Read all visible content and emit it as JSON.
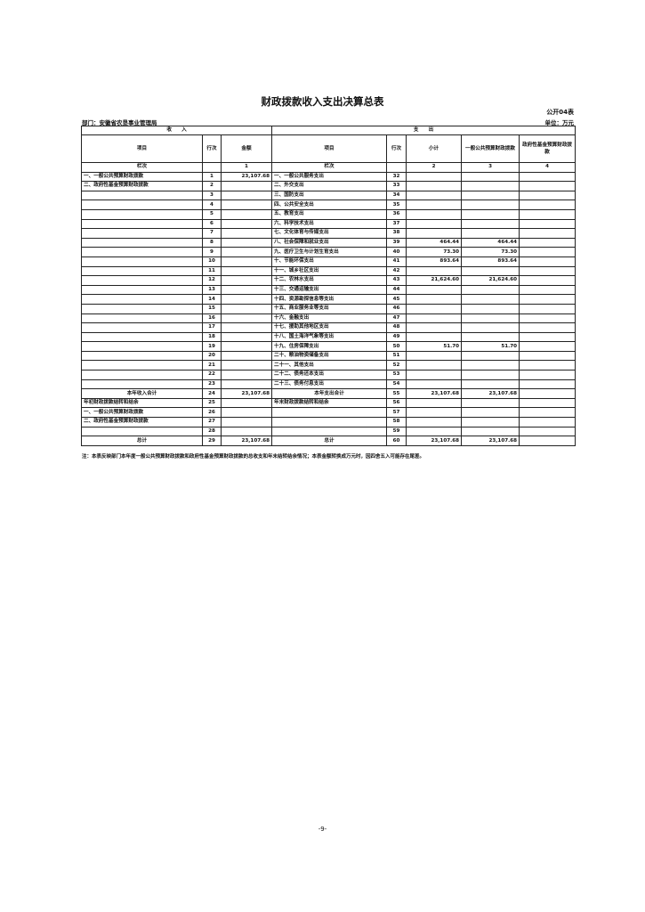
{
  "title": "财政拨款收入支出决算总表",
  "form_no": "公开04表",
  "department": "部门：安徽省农垦事业管理局",
  "unit": "单位：万元",
  "sections": {
    "income": "收　　入",
    "expense": "支　　出"
  },
  "headers": [
    "项目",
    "行次",
    "金额",
    "项目",
    "行次",
    "小计",
    "一般公共预算财政拨款",
    "政府性基金预算财政拨款"
  ],
  "column_index": [
    "栏次",
    "",
    "1",
    "栏次",
    "",
    "2",
    "3",
    "4"
  ],
  "rows": [
    [
      "一、一般公共预算财政拨款",
      "1",
      "23,107.68",
      "一、一般公共服务支出",
      "32",
      "",
      "",
      ""
    ],
    [
      "二、政府性基金预算财政拨款",
      "2",
      "",
      "二、外交支出",
      "33",
      "",
      "",
      ""
    ],
    [
      "",
      "3",
      "",
      "三、国防支出",
      "34",
      "",
      "",
      ""
    ],
    [
      "",
      "4",
      "",
      "四、公共安全支出",
      "35",
      "",
      "",
      ""
    ],
    [
      "",
      "5",
      "",
      "五、教育支出",
      "36",
      "",
      "",
      ""
    ],
    [
      "",
      "6",
      "",
      "六、科学技术支出",
      "37",
      "",
      "",
      ""
    ],
    [
      "",
      "7",
      "",
      "七、文化体育与传媒支出",
      "38",
      "",
      "",
      ""
    ],
    [
      "",
      "8",
      "",
      "八、社会保障和就业支出",
      "39",
      "464.44",
      "464.44",
      ""
    ],
    [
      "",
      "9",
      "",
      "九、医疗卫生与计划生育支出",
      "40",
      "73.30",
      "73.30",
      ""
    ],
    [
      "",
      "10",
      "",
      "十、节能环保支出",
      "41",
      "893.64",
      "893.64",
      ""
    ],
    [
      "",
      "11",
      "",
      "十一、城乡社区支出",
      "42",
      "",
      "",
      ""
    ],
    [
      "",
      "12",
      "",
      "十二、农林水支出",
      "43",
      "21,624.60",
      "21,624.60",
      ""
    ],
    [
      "",
      "13",
      "",
      "十三、交通运输支出",
      "44",
      "",
      "",
      ""
    ],
    [
      "",
      "14",
      "",
      "十四、资源勘探信息等支出",
      "45",
      "",
      "",
      ""
    ],
    [
      "",
      "15",
      "",
      "十五、商业服务业等支出",
      "46",
      "",
      "",
      ""
    ],
    [
      "",
      "16",
      "",
      "十六、金融支出",
      "47",
      "",
      "",
      ""
    ],
    [
      "",
      "17",
      "",
      "十七、援助其他地区支出",
      "48",
      "",
      "",
      ""
    ],
    [
      "",
      "18",
      "",
      "十八、国土海洋气象等支出",
      "49",
      "",
      "",
      ""
    ],
    [
      "",
      "19",
      "",
      "十九、住房保障支出",
      "50",
      "51.70",
      "51.70",
      ""
    ],
    [
      "",
      "20",
      "",
      "二十、粮油物资储备支出",
      "51",
      "",
      "",
      ""
    ],
    [
      "",
      "21",
      "",
      "二十一、其他支出",
      "52",
      "",
      "",
      ""
    ],
    [
      "",
      "22",
      "",
      "二十二、债务还本支出",
      "53",
      "",
      "",
      ""
    ],
    [
      "",
      "23",
      "",
      "二十三、债务付息支出",
      "54",
      "",
      "",
      ""
    ],
    [
      "本年收入合计",
      "24",
      "23,107.68",
      "本年支出合计",
      "55",
      "23,107.68",
      "23,107.68",
      ""
    ],
    [
      "年初财政拨款结转和结余",
      "25",
      "",
      "年末财政拨款结转和结余",
      "56",
      "",
      "",
      ""
    ],
    [
      "一、一般公共预算财政拨款",
      "26",
      "",
      "",
      "57",
      "",
      "",
      ""
    ],
    [
      "二、政府性基金预算财政拨款",
      "27",
      "",
      "",
      "58",
      "",
      "",
      ""
    ],
    [
      "",
      "28",
      "",
      "",
      "59",
      "",
      "",
      ""
    ],
    [
      "总计",
      "29",
      "23,107.68",
      "总计",
      "60",
      "23,107.68",
      "23,107.68",
      ""
    ]
  ],
  "note": "注：本表反映部门本年度一般公共预算财政拨款和政府性基金预算财政拨款的总收支和年末结转结余情况；本表金额转换成万元时，因四舍五入可能存在尾差。",
  "page_number": "-9-"
}
